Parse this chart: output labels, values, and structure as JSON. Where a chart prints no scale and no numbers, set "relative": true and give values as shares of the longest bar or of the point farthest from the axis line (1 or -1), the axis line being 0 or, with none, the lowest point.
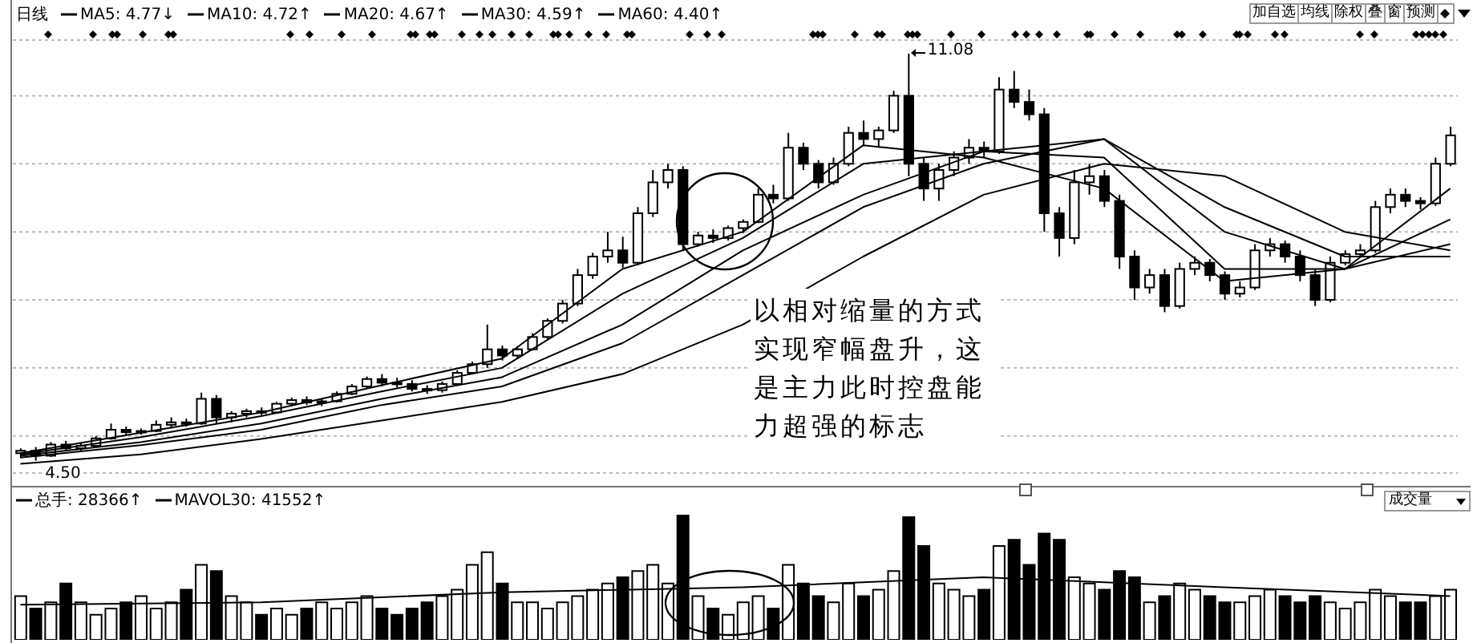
{
  "chart_data": [
    {
      "type": "candlestick",
      "title": "日线",
      "legend": "top left",
      "grid": "y",
      "tick_labels": false,
      "marker": "none",
      "line_style": "solid",
      "categories": [
        null,
        null,
        null,
        null,
        null,
        null,
        null,
        null,
        null,
        null,
        null,
        null,
        null,
        null,
        null,
        null,
        null,
        null,
        null,
        null,
        null,
        null,
        null,
        null,
        null,
        null,
        null,
        null,
        null,
        null,
        null,
        null,
        null,
        null,
        null,
        null,
        null,
        null,
        null,
        null,
        null,
        null,
        null,
        null,
        null,
        null,
        null,
        null,
        null,
        null,
        null,
        null,
        null,
        null,
        null,
        null,
        null,
        null,
        null,
        null,
        null,
        null,
        null,
        null,
        null,
        null,
        null,
        null,
        null,
        null,
        null,
        null,
        null,
        null,
        null,
        null,
        null,
        null,
        null,
        null,
        null,
        null,
        null,
        null,
        null,
        null,
        null,
        null,
        null,
        null,
        null,
        null,
        null,
        null,
        null,
        null
      ],
      "ohlc": [
        [
          4.62,
          4.7,
          4.55,
          4.66
        ],
        [
          4.66,
          4.72,
          4.5,
          4.58
        ],
        [
          4.58,
          4.8,
          4.56,
          4.76
        ],
        [
          4.76,
          4.82,
          4.65,
          4.7
        ],
        [
          4.7,
          4.78,
          4.64,
          4.74
        ],
        [
          4.74,
          4.9,
          4.72,
          4.86
        ],
        [
          4.86,
          5.1,
          4.84,
          5.0
        ],
        [
          5.0,
          5.05,
          4.92,
          4.96
        ],
        [
          4.96,
          5.02,
          4.92,
          4.98
        ],
        [
          4.98,
          5.15,
          4.96,
          5.08
        ],
        [
          5.08,
          5.2,
          5.02,
          5.12
        ],
        [
          5.12,
          5.18,
          5.05,
          5.1
        ],
        [
          5.1,
          5.6,
          5.08,
          5.5
        ],
        [
          5.5,
          5.56,
          5.1,
          5.2
        ],
        [
          5.2,
          5.3,
          5.12,
          5.26
        ],
        [
          5.26,
          5.34,
          5.2,
          5.3
        ],
        [
          5.3,
          5.36,
          5.22,
          5.28
        ],
        [
          5.28,
          5.45,
          5.26,
          5.42
        ],
        [
          5.42,
          5.52,
          5.38,
          5.48
        ],
        [
          5.48,
          5.54,
          5.4,
          5.44
        ],
        [
          5.44,
          5.5,
          5.38,
          5.46
        ],
        [
          5.46,
          5.62,
          5.44,
          5.58
        ],
        [
          5.58,
          5.74,
          5.56,
          5.7
        ],
        [
          5.7,
          5.86,
          5.66,
          5.82
        ],
        [
          5.82,
          5.9,
          5.7,
          5.76
        ],
        [
          5.76,
          5.84,
          5.68,
          5.74
        ],
        [
          5.74,
          5.8,
          5.62,
          5.66
        ],
        [
          5.66,
          5.72,
          5.58,
          5.64
        ],
        [
          5.64,
          5.78,
          5.6,
          5.74
        ],
        [
          5.74,
          5.96,
          5.72,
          5.92
        ],
        [
          5.92,
          6.1,
          5.9,
          6.06
        ],
        [
          6.06,
          6.7,
          6.0,
          6.3
        ],
        [
          6.3,
          6.36,
          6.12,
          6.2
        ],
        [
          6.2,
          6.34,
          6.16,
          6.3
        ],
        [
          6.3,
          6.56,
          6.28,
          6.5
        ],
        [
          6.5,
          6.8,
          6.46,
          6.76
        ],
        [
          6.76,
          7.1,
          6.72,
          7.04
        ],
        [
          7.04,
          7.6,
          7.0,
          7.5
        ],
        [
          7.5,
          7.86,
          7.44,
          7.8
        ],
        [
          7.8,
          8.2,
          7.7,
          7.9
        ],
        [
          7.9,
          8.12,
          7.62,
          7.7
        ],
        [
          7.7,
          8.6,
          7.66,
          8.5
        ],
        [
          8.5,
          9.2,
          8.44,
          9.0
        ],
        [
          9.0,
          9.3,
          8.9,
          9.2
        ],
        [
          9.2,
          9.26,
          7.9,
          8.0
        ],
        [
          8.0,
          8.2,
          7.96,
          8.14
        ],
        [
          8.14,
          8.24,
          8.02,
          8.1
        ],
        [
          8.1,
          8.3,
          8.06,
          8.26
        ],
        [
          8.26,
          8.4,
          8.18,
          8.36
        ],
        [
          8.36,
          8.9,
          8.34,
          8.8
        ],
        [
          8.8,
          8.96,
          8.66,
          8.74
        ],
        [
          8.74,
          9.8,
          8.7,
          9.56
        ],
        [
          9.56,
          9.64,
          9.2,
          9.3
        ],
        [
          9.3,
          9.36,
          8.9,
          9.0
        ],
        [
          9.0,
          9.4,
          8.96,
          9.3
        ],
        [
          9.3,
          9.9,
          9.26,
          9.8
        ],
        [
          9.8,
          10.0,
          9.6,
          9.7
        ],
        [
          9.7,
          9.9,
          9.56,
          9.84
        ],
        [
          9.84,
          10.48,
          9.8,
          10.4
        ],
        [
          10.4,
          11.08,
          9.1,
          9.3
        ],
        [
          9.3,
          9.4,
          8.7,
          8.9
        ],
        [
          8.9,
          9.3,
          8.7,
          9.2
        ],
        [
          9.2,
          9.5,
          9.1,
          9.4
        ],
        [
          9.4,
          9.7,
          9.3,
          9.56
        ],
        [
          9.56,
          9.66,
          9.4,
          9.5
        ],
        [
          9.5,
          10.7,
          9.46,
          10.5
        ],
        [
          10.5,
          10.8,
          10.2,
          10.3
        ],
        [
          10.3,
          10.5,
          10.0,
          10.1
        ],
        [
          10.1,
          10.2,
          8.2,
          8.5
        ],
        [
          8.5,
          8.6,
          7.8,
          8.1
        ],
        [
          8.1,
          9.2,
          8.0,
          9.0
        ],
        [
          9.0,
          9.3,
          8.8,
          9.1
        ],
        [
          9.1,
          9.2,
          8.6,
          8.7
        ],
        [
          8.7,
          8.8,
          7.6,
          7.8
        ],
        [
          7.8,
          7.9,
          7.1,
          7.3
        ],
        [
          7.3,
          7.6,
          7.2,
          7.5
        ],
        [
          7.5,
          7.6,
          6.9,
          7.0
        ],
        [
          7.0,
          7.7,
          6.96,
          7.6
        ],
        [
          7.6,
          7.8,
          7.5,
          7.7
        ],
        [
          7.7,
          7.76,
          7.4,
          7.5
        ],
        [
          7.5,
          7.56,
          7.1,
          7.2
        ],
        [
          7.2,
          7.4,
          7.14,
          7.3
        ],
        [
          7.3,
          8.0,
          7.26,
          7.9
        ],
        [
          7.9,
          8.1,
          7.8,
          8.0
        ],
        [
          8.0,
          8.06,
          7.7,
          7.8
        ],
        [
          7.8,
          7.9,
          7.4,
          7.5
        ],
        [
          7.5,
          7.6,
          7.0,
          7.1
        ],
        [
          7.1,
          7.8,
          7.06,
          7.7
        ],
        [
          7.7,
          7.9,
          7.66,
          7.84
        ],
        [
          7.84,
          8.0,
          7.8,
          7.9
        ],
        [
          7.9,
          8.7,
          7.86,
          8.6
        ],
        [
          8.6,
          8.9,
          8.5,
          8.8
        ],
        [
          8.8,
          8.9,
          8.6,
          8.7
        ],
        [
          8.7,
          8.76,
          8.56,
          8.66
        ],
        [
          8.66,
          9.4,
          8.62,
          9.3
        ],
        [
          9.3,
          9.9,
          9.26,
          9.76
        ]
      ],
      "colors": [
        "#ffffff",
        "#000000",
        "#ffffff",
        "#000000",
        "#ffffff",
        "#ffffff",
        "#ffffff",
        "#000000",
        "#ffffff",
        "#ffffff",
        "#ffffff",
        "#000000",
        "#ffffff",
        "#000000",
        "#ffffff",
        "#ffffff",
        "#000000",
        "#ffffff",
        "#ffffff",
        "#000000",
        "#ffffff",
        "#ffffff",
        "#ffffff",
        "#ffffff",
        "#000000",
        "#000000",
        "#000000",
        "#000000",
        "#ffffff",
        "#ffffff",
        "#ffffff",
        "#ffffff",
        "#000000",
        "#ffffff",
        "#ffffff",
        "#ffffff",
        "#ffffff",
        "#ffffff",
        "#ffffff",
        "#ffffff",
        "#000000",
        "#ffffff",
        "#ffffff",
        "#ffffff",
        "#000000",
        "#ffffff",
        "#000000",
        "#ffffff",
        "#ffffff",
        "#ffffff",
        "#000000",
        "#ffffff",
        "#000000",
        "#000000",
        "#ffffff",
        "#ffffff",
        "#000000",
        "#ffffff",
        "#ffffff",
        "#000000",
        "#000000",
        "#ffffff",
        "#ffffff",
        "#ffffff",
        "#000000",
        "#ffffff",
        "#000000",
        "#000000",
        "#000000",
        "#000000",
        "#ffffff",
        "#ffffff",
        "#000000",
        "#000000",
        "#000000",
        "#ffffff",
        "#000000",
        "#ffffff",
        "#ffffff",
        "#000000",
        "#000000",
        "#ffffff",
        "#ffffff",
        "#ffffff",
        "#000000",
        "#000000",
        "#000000",
        "#ffffff",
        "#ffffff",
        "#ffffff",
        "#ffffff",
        "#ffffff",
        "#000000",
        "#000000",
        "#ffffff",
        "#ffffff"
      ],
      "ylim": [
        4.3,
        11.3
      ],
      "yticks": [
        {
          "value": 4.9,
          "label": null
        },
        {
          "value": 6.0,
          "label": null
        },
        {
          "value": 7.1,
          "label": null
        },
        {
          "value": 8.2,
          "label": null
        },
        {
          "value": 9.3,
          "label": null
        },
        {
          "value": 10.4,
          "label": null
        }
      ],
      "series": [
        {
          "type": "line",
          "name": "MA5: 4.77↓",
          "color": "#000000",
          "values": [
            4.62,
            null,
            null,
            null,
            null,
            null,
            null,
            null,
            4.95,
            null,
            null,
            null,
            null,
            null,
            null,
            null,
            5.28,
            null,
            null,
            null,
            null,
            null,
            null,
            null,
            5.72,
            null,
            null,
            null,
            null,
            null,
            null,
            null,
            6.15,
            null,
            null,
            null,
            null,
            null,
            null,
            null,
            7.6,
            null,
            null,
            null,
            null,
            null,
            null,
            null,
            8.2,
            null,
            null,
            null,
            null,
            null,
            null,
            null,
            9.6,
            null,
            null,
            null,
            null,
            null,
            null,
            null,
            9.4,
            null,
            null,
            null,
            null,
            null,
            null,
            null,
            8.9,
            null,
            null,
            null,
            null,
            null,
            null,
            null,
            7.4,
            null,
            null,
            null,
            null,
            null,
            null,
            null,
            7.6,
            null,
            null,
            null,
            null,
            null,
            null,
            8.9
          ]
        },
        {
          "type": "line",
          "name": "MA10: 4.72↑",
          "color": "#000000",
          "values": [
            4.6,
            null,
            null,
            null,
            null,
            null,
            null,
            null,
            4.88,
            null,
            null,
            null,
            null,
            null,
            null,
            null,
            5.22,
            null,
            null,
            null,
            null,
            null,
            null,
            null,
            5.62,
            null,
            null,
            null,
            null,
            null,
            null,
            null,
            6.0,
            null,
            null,
            null,
            null,
            null,
            null,
            null,
            7.2,
            null,
            null,
            null,
            null,
            null,
            null,
            null,
            8.1,
            null,
            null,
            null,
            null,
            null,
            null,
            null,
            9.3,
            null,
            null,
            null,
            null,
            null,
            null,
            null,
            9.5,
            null,
            null,
            null,
            null,
            null,
            null,
            null,
            9.4,
            null,
            null,
            null,
            null,
            null,
            null,
            null,
            7.6,
            null,
            null,
            null,
            null,
            null,
            null,
            null,
            7.6,
            null,
            null,
            null,
            null,
            null,
            null,
            8.4
          ]
        },
        {
          "type": "line",
          "name": "MA20: 4.67↑",
          "color": "#000000",
          "values": [
            4.58,
            null,
            null,
            null,
            null,
            null,
            null,
            null,
            4.8,
            null,
            null,
            null,
            null,
            null,
            null,
            null,
            5.1,
            null,
            null,
            null,
            null,
            null,
            null,
            null,
            5.5,
            null,
            null,
            null,
            null,
            null,
            null,
            null,
            5.85,
            null,
            null,
            null,
            null,
            null,
            null,
            null,
            6.7,
            null,
            null,
            null,
            null,
            null,
            null,
            null,
            7.9,
            null,
            null,
            null,
            null,
            null,
            null,
            null,
            8.8,
            null,
            null,
            null,
            null,
            null,
            null,
            null,
            9.5,
            null,
            null,
            null,
            null,
            null,
            null,
            null,
            9.7,
            null,
            null,
            null,
            null,
            null,
            null,
            null,
            8.2,
            null,
            null,
            null,
            null,
            null,
            null,
            null,
            7.6,
            null,
            null,
            null,
            null,
            null,
            null,
            8.0
          ]
        },
        {
          "type": "line",
          "name": "MA30: 4.59↑",
          "color": "#000000",
          "values": [
            4.55,
            null,
            null,
            null,
            null,
            null,
            null,
            null,
            4.75,
            null,
            null,
            null,
            null,
            null,
            null,
            null,
            5.0,
            null,
            null,
            null,
            null,
            null,
            null,
            null,
            5.4,
            null,
            null,
            null,
            null,
            null,
            null,
            null,
            5.7,
            null,
            null,
            null,
            null,
            null,
            null,
            null,
            6.4,
            null,
            null,
            null,
            null,
            null,
            null,
            null,
            7.5,
            null,
            null,
            null,
            null,
            null,
            null,
            null,
            8.6,
            null,
            null,
            null,
            null,
            null,
            null,
            null,
            9.3,
            null,
            null,
            null,
            null,
            null,
            null,
            null,
            9.7,
            null,
            null,
            null,
            null,
            null,
            null,
            null,
            8.6,
            null,
            null,
            null,
            null,
            null,
            null,
            null,
            7.8,
            null,
            null,
            null,
            null,
            null,
            null,
            7.8
          ]
        },
        {
          "type": "line",
          "name": "MA60: 4.40↑",
          "color": "#000000",
          "values": [
            4.45,
            null,
            null,
            null,
            null,
            null,
            null,
            null,
            4.6,
            null,
            null,
            null,
            null,
            null,
            null,
            null,
            4.85,
            null,
            null,
            null,
            null,
            null,
            null,
            null,
            5.15,
            null,
            null,
            null,
            null,
            null,
            null,
            null,
            5.45,
            null,
            null,
            null,
            null,
            null,
            null,
            null,
            5.9,
            null,
            null,
            null,
            null,
            null,
            null,
            null,
            6.7,
            null,
            null,
            null,
            null,
            null,
            null,
            null,
            7.8,
            null,
            null,
            null,
            null,
            null,
            null,
            null,
            8.8,
            null,
            null,
            null,
            null,
            null,
            null,
            null,
            9.3,
            null,
            null,
            null,
            null,
            null,
            null,
            null,
            9.1,
            null,
            null,
            null,
            null,
            null,
            null,
            null,
            8.2,
            null,
            null,
            null,
            null,
            null,
            null,
            7.9
          ]
        }
      ],
      "annotations": [
        "以相对缩量的方式实现窄幅盘升，这是主力此时控盘能力超强的标志",
        "11.08",
        "4.50",
        "加自选",
        "均线",
        "除权",
        "叠",
        "窗",
        "预测"
      ]
    },
    {
      "type": "bar",
      "relative": true,
      "legend": "top left",
      "marker": "none",
      "categories": [
        null,
        null,
        null,
        null,
        null,
        null,
        null,
        null,
        null,
        null,
        null,
        null,
        null,
        null,
        null,
        null,
        null,
        null,
        null,
        null,
        null,
        null,
        null,
        null,
        null,
        null,
        null,
        null,
        null,
        null,
        null,
        null,
        null,
        null,
        null,
        null,
        null,
        null,
        null,
        null,
        null,
        null,
        null,
        null,
        null,
        null,
        null,
        null,
        null,
        null,
        null,
        null,
        null,
        null,
        null,
        null,
        null,
        null,
        null,
        null,
        null,
        null,
        null,
        null,
        null,
        null,
        null,
        null,
        null,
        null,
        null,
        null,
        null,
        null,
        null,
        null,
        null,
        null,
        null,
        null,
        null,
        null,
        null,
        null,
        null,
        null,
        null,
        null,
        null,
        null,
        null,
        null,
        null,
        null,
        null,
        null
      ],
      "series": [
        {
          "name": "总手: 28366↑",
          "colors": [
            "#ffffff",
            "#000000",
            "#ffffff",
            "#000000",
            "#ffffff",
            "#ffffff",
            "#ffffff",
            "#000000",
            "#ffffff",
            "#ffffff",
            "#ffffff",
            "#000000",
            "#ffffff",
            "#000000",
            "#ffffff",
            "#ffffff",
            "#000000",
            "#ffffff",
            "#ffffff",
            "#000000",
            "#ffffff",
            "#ffffff",
            "#ffffff",
            "#ffffff",
            "#000000",
            "#000000",
            "#000000",
            "#000000",
            "#ffffff",
            "#ffffff",
            "#ffffff",
            "#ffffff",
            "#000000",
            "#ffffff",
            "#ffffff",
            "#ffffff",
            "#ffffff",
            "#ffffff",
            "#ffffff",
            "#ffffff",
            "#000000",
            "#ffffff",
            "#ffffff",
            "#ffffff",
            "#000000",
            "#ffffff",
            "#000000",
            "#ffffff",
            "#ffffff",
            "#ffffff",
            "#000000",
            "#ffffff",
            "#000000",
            "#000000",
            "#ffffff",
            "#ffffff",
            "#000000",
            "#ffffff",
            "#ffffff",
            "#000000",
            "#000000",
            "#ffffff",
            "#ffffff",
            "#ffffff",
            "#000000",
            "#ffffff",
            "#000000",
            "#000000",
            "#000000",
            "#000000",
            "#ffffff",
            "#ffffff",
            "#000000",
            "#000000",
            "#000000",
            "#ffffff",
            "#000000",
            "#ffffff",
            "#ffffff",
            "#000000",
            "#000000",
            "#ffffff",
            "#ffffff",
            "#ffffff",
            "#000000",
            "#000000",
            "#000000",
            "#ffffff",
            "#ffffff",
            "#ffffff",
            "#ffffff",
            "#ffffff",
            "#000000",
            "#000000",
            "#ffffff",
            "#ffffff"
          ],
          "values": [
            0.35,
            0.25,
            0.3,
            0.45,
            0.3,
            0.2,
            0.25,
            0.3,
            0.35,
            0.25,
            0.3,
            0.4,
            0.6,
            0.55,
            0.35,
            0.3,
            0.2,
            0.25,
            0.2,
            0.25,
            0.3,
            0.25,
            0.3,
            0.35,
            0.25,
            0.2,
            0.25,
            0.3,
            0.35,
            0.4,
            0.6,
            0.7,
            0.45,
            0.3,
            0.3,
            0.25,
            0.3,
            0.35,
            0.4,
            0.45,
            0.5,
            0.55,
            0.6,
            0.45,
            1.0,
            0.35,
            0.25,
            0.2,
            0.3,
            0.35,
            0.25,
            0.6,
            0.45,
            0.35,
            0.3,
            0.45,
            0.35,
            0.4,
            0.55,
            0.98,
            0.75,
            0.45,
            0.4,
            0.35,
            0.4,
            0.75,
            0.8,
            0.6,
            0.85,
            0.8,
            0.5,
            0.45,
            0.4,
            0.55,
            0.5,
            0.3,
            0.35,
            0.45,
            0.4,
            0.35,
            0.3,
            0.3,
            0.35,
            0.4,
            0.35,
            0.3,
            0.35,
            0.3,
            0.25,
            0.3,
            0.4,
            0.35,
            0.3,
            0.3,
            0.35,
            0.4
          ]
        },
        {
          "type": "line",
          "name": "MAVOL30: 41552↑",
          "color": "#000000",
          "values": [
            0.28,
            null,
            null,
            null,
            null,
            null,
            null,
            null,
            null,
            null,
            null,
            null,
            null,
            null,
            null,
            null,
            0.3,
            null,
            null,
            null,
            null,
            null,
            null,
            null,
            null,
            null,
            null,
            null,
            null,
            null,
            null,
            null,
            0.38,
            null,
            null,
            null,
            null,
            null,
            null,
            null,
            null,
            null,
            null,
            null,
            null,
            null,
            null,
            null,
            0.42,
            null,
            null,
            null,
            null,
            null,
            null,
            null,
            null,
            null,
            null,
            null,
            null,
            null,
            null,
            null,
            0.5,
            null,
            null,
            null,
            null,
            null,
            null,
            null,
            null,
            null,
            null,
            null,
            null,
            null,
            null,
            null,
            0.42,
            null,
            null,
            null,
            null,
            null,
            null,
            null,
            null,
            null,
            null,
            null,
            null,
            null,
            null,
            0.35
          ]
        }
      ],
      "annotations": [
        "成交量"
      ]
    }
  ]
}
